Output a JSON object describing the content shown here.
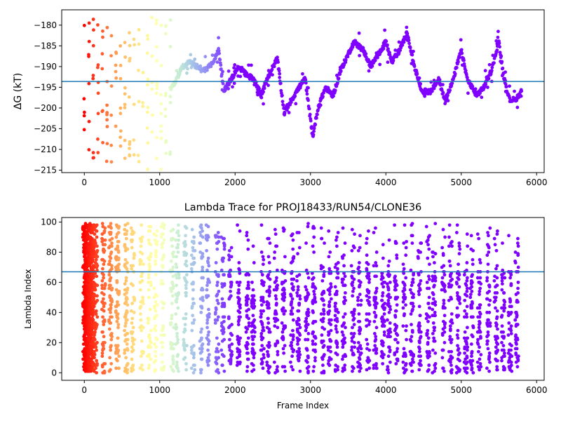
{
  "chart_data": [
    {
      "type": "scatter",
      "title": "",
      "xlabel": "",
      "ylabel": "ΔG (kT)",
      "xlim": [
        -300,
        6100
      ],
      "ylim": [
        -215.6,
        -176.3
      ],
      "xticks": [
        0,
        1000,
        2000,
        3000,
        4000,
        5000,
        6000
      ],
      "yticks": [
        -215,
        -210,
        -205,
        -200,
        -195,
        -190,
        -185,
        -180
      ],
      "hline": -193.6,
      "hline_color": "#1f77b4",
      "colormap": "rainbow (red at frame 0 → violet from ~2000)",
      "grid": false,
      "trace_keypoints": {
        "x": [
          0,
          100,
          200,
          300,
          400,
          500,
          600,
          700,
          800,
          900,
          1000,
          1100,
          1200,
          1300,
          1400,
          1500,
          1600,
          1700,
          1780,
          1850,
          1950,
          2050,
          2150,
          2250,
          2350,
          2450,
          2560,
          2650,
          2750,
          2850,
          2930,
          3030,
          3100,
          3200,
          3300,
          3400,
          3500,
          3580,
          3700,
          3800,
          3900,
          4000,
          4080,
          4180,
          4280,
          4380,
          4480,
          4600,
          4700,
          4780,
          4880,
          5000,
          5080,
          5200,
          5300,
          5400,
          5500,
          5560,
          5640,
          5720,
          5800
        ],
        "y": [
          -195,
          -200,
          -197,
          -206,
          -204,
          -200,
          -196,
          -206,
          -198,
          -209,
          -200,
          -197,
          -194,
          -190,
          -189,
          -190,
          -191,
          -189,
          -186,
          -196,
          -193,
          -190,
          -192,
          -193,
          -197,
          -192,
          -188,
          -201,
          -198,
          -195,
          -193,
          -207,
          -200,
          -195,
          -197,
          -191,
          -187,
          -184,
          -186,
          -190,
          -187,
          -184,
          -189,
          -186,
          -182,
          -190,
          -196,
          -196,
          -193,
          -198,
          -194,
          -186,
          -193,
          -197,
          -195,
          -191,
          -184,
          -192,
          -198,
          -198,
          -196
        ]
      }
    },
    {
      "type": "scatter",
      "title": "Lambda Trace for PROJ18433/RUN54/CLONE36",
      "xlabel": "Frame Index",
      "ylabel": "Lambda Index",
      "xlim": [
        -300,
        6100
      ],
      "ylim": [
        -5,
        103
      ],
      "xticks": [
        0,
        1000,
        2000,
        3000,
        4000,
        5000,
        6000
      ],
      "yticks": [
        0,
        20,
        40,
        60,
        80,
        100
      ],
      "hline": 67,
      "hline_color": "#1f77b4",
      "colormap": "rainbow (red at frame 0 → violet from ~2000)",
      "grid": false,
      "lambda_range": [
        0,
        99
      ]
    }
  ]
}
